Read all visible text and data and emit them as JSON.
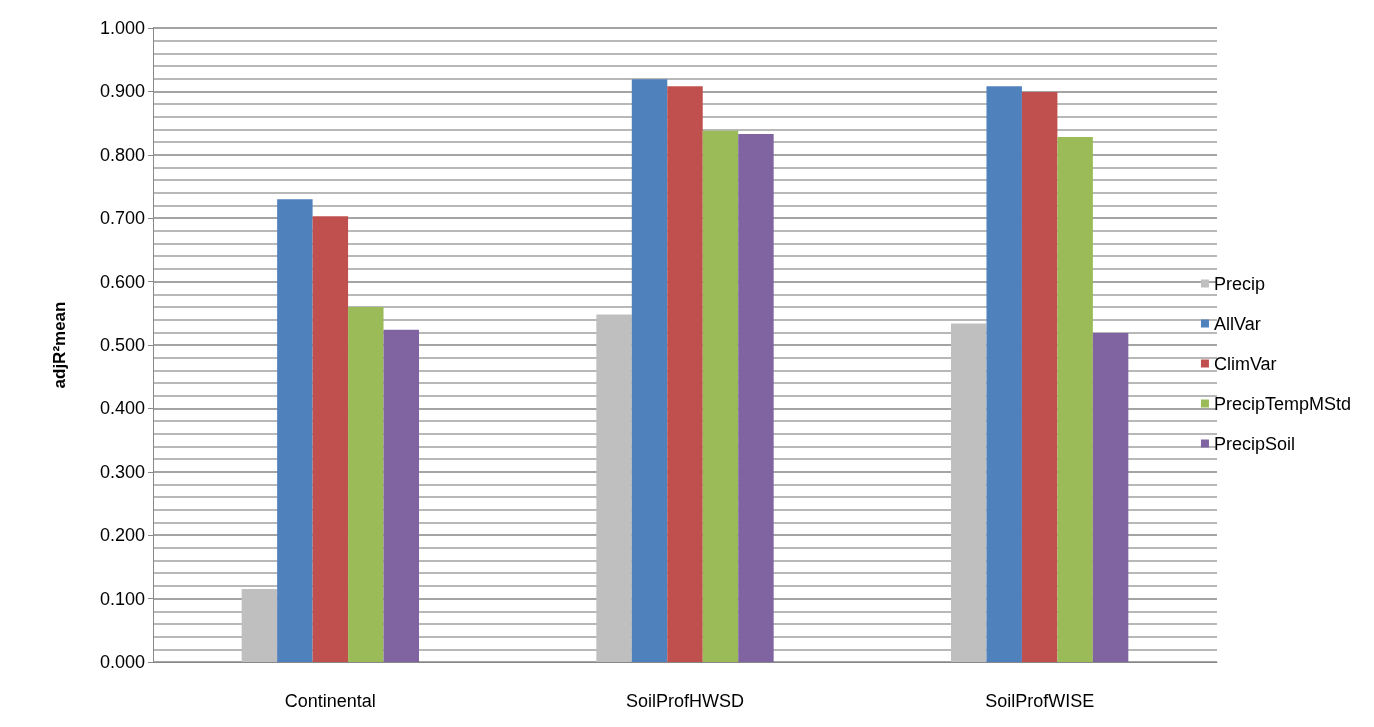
{
  "chart_data": {
    "type": "bar",
    "ylabel": "adjR²mean",
    "categories": [
      "Continental",
      "SoilProfHWSD",
      "SoilProfWISE"
    ],
    "series": [
      {
        "name": "Precip",
        "color": "#bfbfbf",
        "values": [
          0.115,
          0.548,
          0.534
        ]
      },
      {
        "name": "AllVar",
        "color": "#4f81bd",
        "values": [
          0.73,
          0.919,
          0.908
        ]
      },
      {
        "name": "ClimVar",
        "color": "#c0504d",
        "values": [
          0.703,
          0.908,
          0.899
        ]
      },
      {
        "name": "PrecipTempMStd",
        "color": "#9bbb59",
        "values": [
          0.56,
          0.838,
          0.828
        ]
      },
      {
        "name": "PrecipSoil",
        "color": "#8064a2",
        "values": [
          0.524,
          0.833,
          0.519
        ]
      }
    ],
    "ylim": [
      0,
      1
    ],
    "yticks": [
      {
        "value": 0,
        "label": "0.000"
      },
      {
        "value": 0.1,
        "label": "0.100"
      },
      {
        "value": 0.2,
        "label": "0.200"
      },
      {
        "value": 0.3,
        "label": "0.300"
      },
      {
        "value": 0.4,
        "label": "0.400"
      },
      {
        "value": 0.5,
        "label": "0.500"
      },
      {
        "value": 0.6,
        "label": "0.600"
      },
      {
        "value": 0.7,
        "label": "0.700"
      },
      {
        "value": 0.8,
        "label": "0.800"
      },
      {
        "value": 0.9,
        "label": "0.900"
      },
      {
        "value": 1,
        "label": "1.000"
      }
    ],
    "grid": true,
    "legend": "right"
  }
}
